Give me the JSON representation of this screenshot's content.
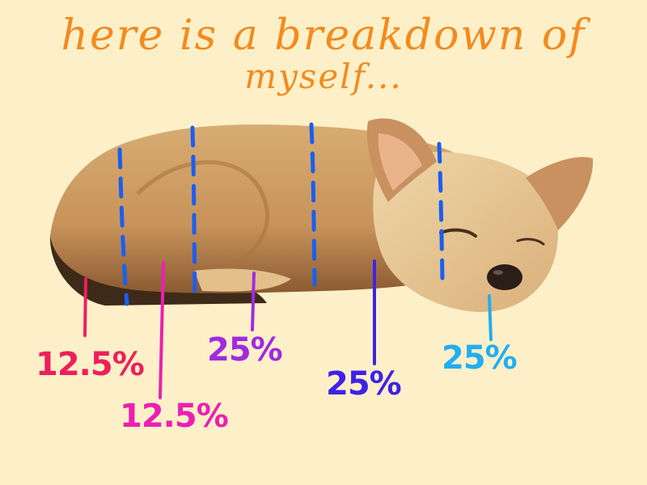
{
  "title": {
    "line1": "here is a breakdown of",
    "line2": "myself..."
  },
  "segments": [
    {
      "label": "12.5%",
      "color": "#ee1f5c"
    },
    {
      "label": "12.5%",
      "color": "#ec1fb2"
    },
    {
      "label": "25%",
      "color": "#a12ae0"
    },
    {
      "label": "25%",
      "color": "#3e22e8"
    },
    {
      "label": "25%",
      "color": "#22aef0"
    }
  ],
  "divider_color": "#1a5ff0"
}
